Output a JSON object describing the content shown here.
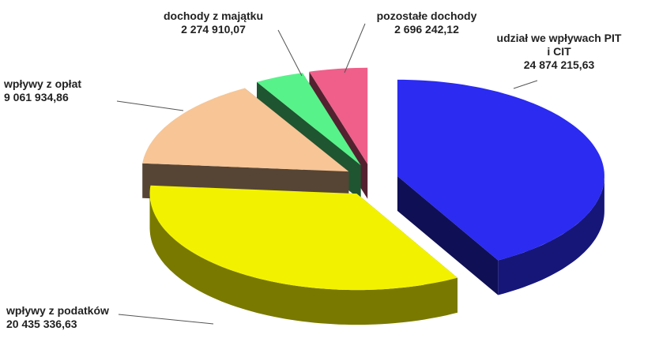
{
  "chart_data": {
    "type": "pie3d",
    "categories": [
      "udział we wpływach PIT i CIT",
      "wpływy z podatków",
      "wpływy z opłat",
      "dochody z majątku",
      "pozostałe dochody"
    ],
    "values": [
      24874215.63,
      20435336.63,
      9061934.86,
      2274910.07,
      2696242.12
    ],
    "value_labels": [
      "24 874 215,63",
      "20 435 336,63",
      "9 061 934,86",
      "2 274 910,07",
      "2 696 242,12"
    ],
    "colors": [
      "#2b2bf2",
      "#f2f200",
      "#f7c596",
      "#58f28a",
      "#ef5f8a"
    ]
  }
}
